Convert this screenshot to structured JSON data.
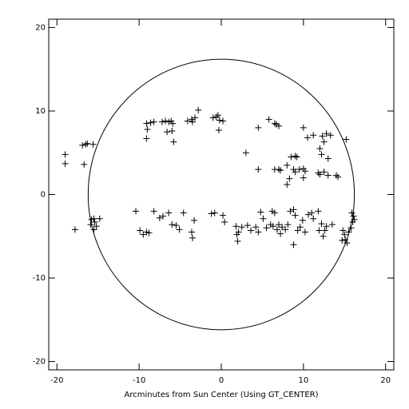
{
  "chart_data": {
    "type": "scatter",
    "xlabel": "Arcminutes from Sun Center (Using GT_CENTER)",
    "xlim": [
      -21,
      21
    ],
    "ylim": [
      -21,
      21
    ],
    "xticks": [
      -20,
      -10,
      0,
      10,
      20
    ],
    "yticks": [
      -20,
      -10,
      0,
      10,
      20
    ],
    "color": "#000000",
    "marker": "plus",
    "circle": {
      "cx": 0,
      "cy": 0,
      "r": 16.2
    },
    "x": [
      -19,
      -19,
      -16.5,
      -16.9,
      -16.3,
      -15.6,
      -16.7,
      -9.1,
      -8.6,
      -8.2,
      -9.0,
      -9.1,
      -7.2,
      -6.8,
      -6.4,
      -6.1,
      -5.9,
      -6.6,
      -6,
      -5.8,
      -4.1,
      -3.6,
      -3.2,
      -2.8,
      -3.5,
      -1,
      -0.6,
      -0.4,
      -0.2,
      0.2,
      -0.3,
      4.5,
      5.8,
      6.5,
      7,
      6.7,
      3,
      4.5,
      6.5,
      7,
      7.2,
      8,
      8.5,
      9,
      9.2,
      8.8,
      9.5,
      10,
      10.2,
      9,
      8,
      10,
      11.2,
      12.3,
      12.8,
      13.3,
      12.5,
      12,
      12.2,
      13,
      10.5,
      11.8,
      12.5,
      13,
      12,
      14.2,
      14,
      15.2,
      10,
      8.3,
      -15.8,
      -15.5,
      -15.4,
      -15.9,
      -15.2,
      -15.5,
      -14.8,
      -17.8,
      -10.4,
      -9.9,
      -9.5,
      -9.1,
      -8.8,
      -8.2,
      -7.5,
      -7.1,
      -6.4,
      -6.0,
      -5.5,
      -5.1,
      -4.6,
      -3.6,
      -3.5,
      -3.3,
      -1.2,
      -0.8,
      0.2,
      0.4,
      1.8,
      1.9,
      2.0,
      2.5,
      3.2,
      3.6,
      4.2,
      4.5,
      4.8,
      5.1,
      5.5,
      6,
      6.2,
      6.5,
      6.8,
      7,
      7.4,
      7.8,
      8.1,
      8.4,
      8.8,
      9.0,
      9.3,
      9.6,
      9.9,
      10.2,
      10.6,
      11,
      11.2,
      11.8,
      12.2,
      12.6,
      12.8,
      13.5,
      14.8,
      15,
      15.1,
      15.3,
      15.5,
      15.8,
      16,
      16.1,
      15.9,
      16.2,
      8.8,
      12.4,
      14.7,
      2.1,
      6.3,
      7.2,
      11.9
    ],
    "y": [
      4.8,
      3.7,
      6,
      5.9,
      6.1,
      6,
      3.6,
      8.5,
      8.6,
      8.7,
      7.8,
      6.7,
      8.7,
      8.8,
      8.7,
      8.8,
      8.5,
      7.5,
      7.6,
      6.3,
      8.8,
      9,
      9.2,
      10.1,
      8.7,
      9.2,
      9.3,
      9.5,
      8.9,
      8.8,
      7.7,
      8,
      9,
      8.5,
      8.2,
      8.4,
      5,
      3,
      3,
      3,
      2.9,
      3.5,
      4.5,
      4.6,
      4.5,
      3,
      3,
      3.1,
      2.8,
      2.7,
      1.2,
      8,
      7.1,
      7,
      7.3,
      7.1,
      6.3,
      5.5,
      4.8,
      4.3,
      6.8,
      2.6,
      2.7,
      2.3,
      2.4,
      2.1,
      2.3,
      6.6,
      2,
      1.9,
      -3,
      -2.9,
      -3.3,
      -3.6,
      -3.8,
      -4.2,
      -2.9,
      -4.2,
      -2,
      -4.3,
      -4.8,
      -4.5,
      -4.6,
      -2,
      -2.8,
      -2.6,
      -2.2,
      -3.6,
      -3.7,
      -4.2,
      -2.2,
      -4.5,
      -5.2,
      -3.1,
      -2.3,
      -2.2,
      -2.5,
      -3.3,
      -3.8,
      -4.8,
      -5.6,
      -3.9,
      -3.7,
      -4.3,
      -3.9,
      -4.5,
      -2.1,
      -2.9,
      -4,
      -3.6,
      -2,
      -2.2,
      -4.2,
      -3.6,
      -3.9,
      -4.2,
      -3.6,
      -2,
      -1.8,
      -2.5,
      -4.3,
      -3.9,
      -3.1,
      -4.5,
      -2.4,
      -2.2,
      -2.9,
      -2.0,
      -3.5,
      -4.3,
      -3.8,
      -3.6,
      -4.3,
      -4.8,
      -5.4,
      -5.8,
      -4.5,
      -4,
      -3.3,
      -2.6,
      -2.2,
      -3,
      -6,
      -5,
      -5.5,
      -4.5,
      -3.8,
      -4.7,
      -4.3
    ]
  }
}
